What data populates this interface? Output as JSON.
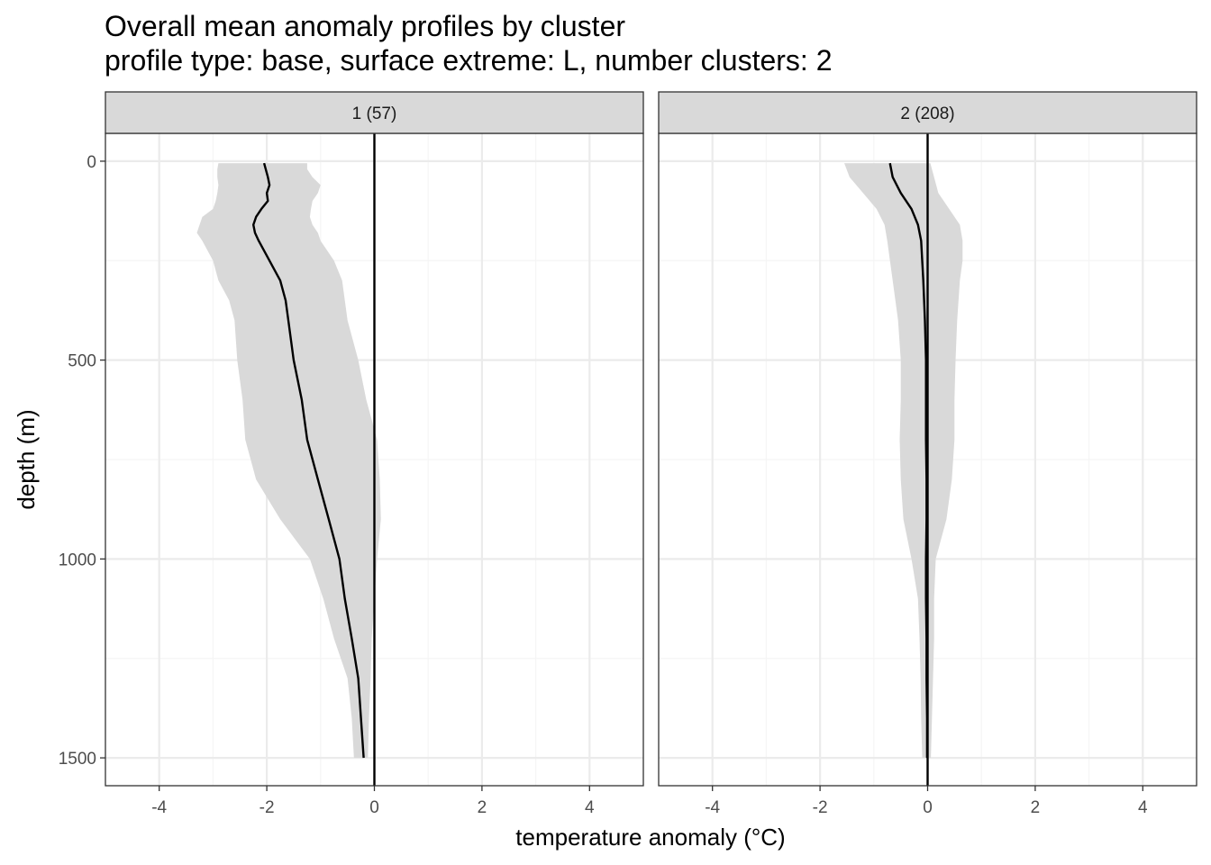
{
  "chart_data": {
    "type": "line",
    "title": "Overall mean anomaly profiles by cluster",
    "subtitle": "profile type: base, surface extreme: L, number clusters: 2",
    "xlabel": "temperature anomaly (°C)",
    "ylabel": "depth (m)",
    "xlim": [
      -5,
      5
    ],
    "ylim": [
      1570,
      -70
    ],
    "y_reversed": true,
    "x_ticks": [
      -4,
      -2,
      0,
      2,
      4
    ],
    "x_tick_labels": [
      "-4",
      "-2",
      "0",
      "2",
      "4"
    ],
    "y_ticks": [
      0,
      500,
      1000,
      1500
    ],
    "y_tick_labels": [
      "0",
      "500",
      "1000",
      "1500"
    ],
    "grid": true,
    "reference_line_x": 0,
    "panels": [
      {
        "label": "1 (57)",
        "mean_profile": {
          "depth": [
            5,
            20,
            40,
            60,
            80,
            100,
            120,
            140,
            160,
            180,
            200,
            250,
            300,
            350,
            400,
            500,
            600,
            700,
            800,
            900,
            1000,
            1100,
            1200,
            1300,
            1400,
            1500
          ],
          "anomaly": [
            -2.05,
            -2.02,
            -1.98,
            -1.95,
            -2.0,
            -1.98,
            -2.1,
            -2.2,
            -2.25,
            -2.22,
            -2.15,
            -1.95,
            -1.75,
            -1.65,
            -1.6,
            -1.5,
            -1.35,
            -1.25,
            -1.05,
            -0.85,
            -0.65,
            -0.55,
            -0.42,
            -0.3,
            -0.25,
            -0.2
          ]
        },
        "band": {
          "depth": [
            5,
            20,
            40,
            60,
            80,
            100,
            120,
            140,
            160,
            180,
            200,
            250,
            300,
            350,
            400,
            500,
            600,
            700,
            800,
            900,
            1000,
            1100,
            1200,
            1300,
            1400,
            1500
          ],
          "lower": [
            -2.9,
            -2.92,
            -2.92,
            -2.9,
            -2.92,
            -2.95,
            -3.0,
            -3.2,
            -3.25,
            -3.3,
            -3.2,
            -3.0,
            -2.9,
            -2.7,
            -2.6,
            -2.55,
            -2.45,
            -2.4,
            -2.2,
            -1.75,
            -1.2,
            -0.95,
            -0.75,
            -0.5,
            -0.42,
            -0.38
          ],
          "upper": [
            -1.25,
            -1.25,
            -1.15,
            -1.0,
            -1.05,
            -1.15,
            -1.18,
            -1.2,
            -1.15,
            -1.05,
            -1.0,
            -0.75,
            -0.6,
            -0.55,
            -0.5,
            -0.3,
            -0.15,
            0.05,
            0.1,
            0.12,
            0.05,
            0.0,
            -0.05,
            -0.07,
            -0.1,
            -0.12
          ]
        }
      },
      {
        "label": "2 (208)",
        "mean_profile": {
          "depth": [
            5,
            40,
            80,
            120,
            160,
            200,
            250,
            300,
            400,
            500,
            600,
            700,
            800,
            900,
            1000,
            1100,
            1200,
            1300,
            1400,
            1500
          ],
          "anomaly": [
            -0.7,
            -0.65,
            -0.5,
            -0.3,
            -0.18,
            -0.12,
            -0.1,
            -0.08,
            -0.05,
            -0.03,
            -0.03,
            -0.03,
            -0.02,
            -0.02,
            -0.03,
            -0.03,
            -0.02,
            -0.02,
            -0.01,
            -0.01
          ]
        },
        "band": {
          "depth": [
            5,
            40,
            80,
            120,
            160,
            200,
            250,
            300,
            400,
            500,
            600,
            700,
            800,
            900,
            1000,
            1100,
            1200,
            1300,
            1400,
            1500
          ],
          "lower": [
            -1.55,
            -1.45,
            -1.2,
            -0.95,
            -0.8,
            -0.75,
            -0.7,
            -0.65,
            -0.55,
            -0.5,
            -0.5,
            -0.52,
            -0.5,
            -0.45,
            -0.3,
            -0.18,
            -0.15,
            -0.13,
            -0.12,
            -0.1
          ],
          "upper": [
            0.05,
            0.12,
            0.2,
            0.4,
            0.6,
            0.65,
            0.65,
            0.6,
            0.55,
            0.52,
            0.5,
            0.5,
            0.45,
            0.35,
            0.15,
            0.12,
            0.12,
            0.1,
            0.08,
            0.06
          ]
        }
      }
    ]
  },
  "colors": {
    "band_fill": "#d9d9d9",
    "line": "#000000",
    "grid_major": "#ebebeb",
    "grid_minor": "#f5f5f5",
    "strip_fill": "#d9d9d9",
    "panel_border": "#333333",
    "tick_text": "#4d4d4d"
  }
}
